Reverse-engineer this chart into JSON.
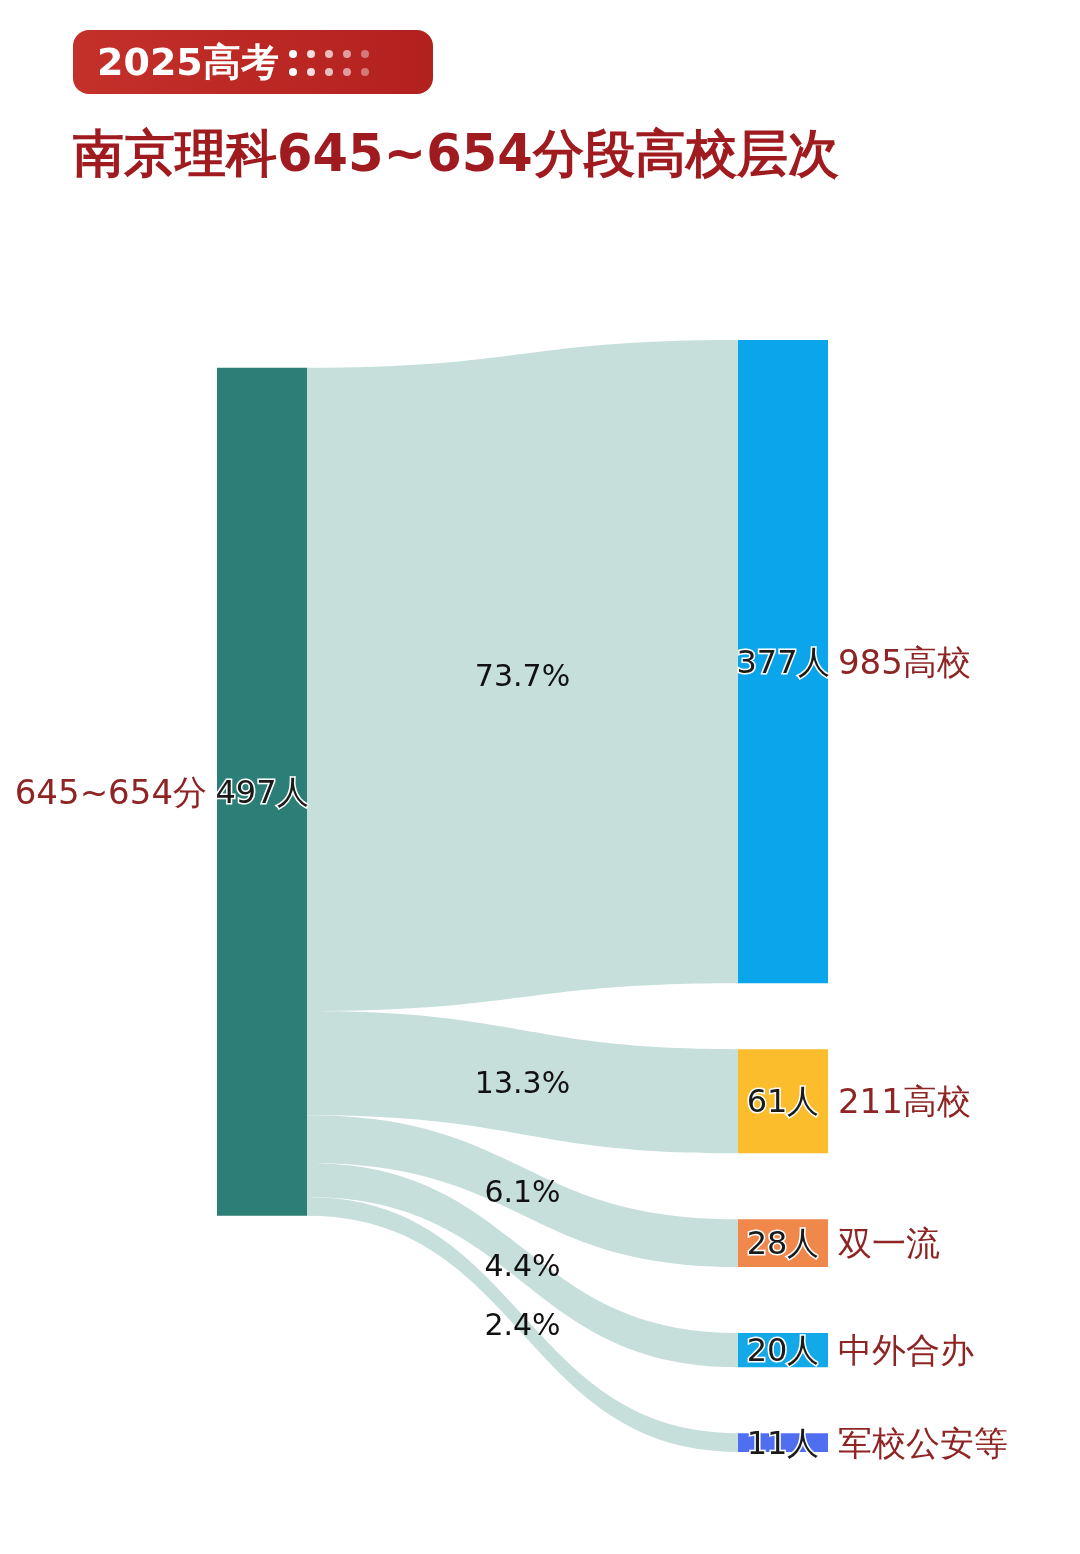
{
  "chart_data": {
    "type": "other",
    "title": "南京理科645~654分段高校层次",
    "annotations": [
      "2025高考"
    ],
    "categories": [
      "645~654分",
      "985高校",
      "211高校",
      "双一流",
      "中外合办",
      "军校公安等"
    ],
    "series": [
      {
        "values": [
          497,
          377,
          61,
          28,
          20,
          11
        ],
        "colors": [
          "#2b7f76",
          "#0aa5ea",
          "#fbbd2c",
          "#f0874b",
          "#13a8e8",
          "#4f6ff0"
        ],
        "value_labels": [
          "497人",
          "377人",
          "61人",
          "28人",
          "20人",
          "11人"
        ]
      },
      {
        "color": "#c7dfdb",
        "values": [
          null,
          73.7,
          13.3,
          6.1,
          4.4,
          2.4
        ],
        "value_labels": [
          null,
          "73.7%",
          "13.3%",
          "6.1%",
          "4.4%",
          "2.4%"
        ]
      }
    ]
  }
}
